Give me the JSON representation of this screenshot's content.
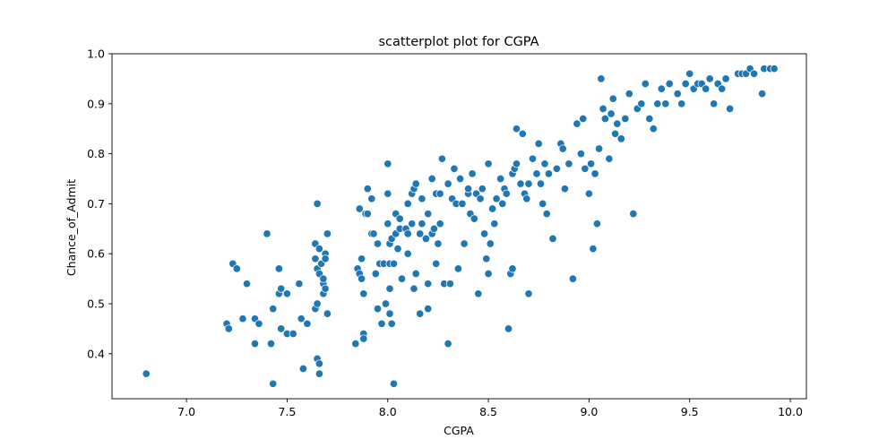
{
  "chart_data": {
    "type": "scatter",
    "title": "scatterplot plot for CGPA",
    "xlabel": "CGPA",
    "ylabel": "Chance_of_Admit",
    "xlim": [
      6.63,
      10.08
    ],
    "ylim": [
      0.31,
      1.0
    ],
    "xticks": [
      "7.0",
      "7.5",
      "8.0",
      "8.5",
      "9.0",
      "9.5",
      "10.0"
    ],
    "yticks": [
      "0.4",
      "0.5",
      "0.6",
      "0.7",
      "0.8",
      "0.9",
      "1.0"
    ],
    "grid": false,
    "color": "#1f77b4",
    "series": [
      {
        "points": [
          [
            6.8,
            0.36
          ],
          [
            7.2,
            0.46
          ],
          [
            7.21,
            0.45
          ],
          [
            7.23,
            0.58
          ],
          [
            7.25,
            0.57
          ],
          [
            7.28,
            0.47
          ],
          [
            7.3,
            0.54
          ],
          [
            7.34,
            0.47
          ],
          [
            7.34,
            0.42
          ],
          [
            7.36,
            0.46
          ],
          [
            7.4,
            0.64
          ],
          [
            7.42,
            0.42
          ],
          [
            7.43,
            0.34
          ],
          [
            7.43,
            0.49
          ],
          [
            7.46,
            0.52
          ],
          [
            7.46,
            0.57
          ],
          [
            7.47,
            0.53
          ],
          [
            7.47,
            0.45
          ],
          [
            7.5,
            0.52
          ],
          [
            7.5,
            0.44
          ],
          [
            7.53,
            0.44
          ],
          [
            7.56,
            0.54
          ],
          [
            7.57,
            0.47
          ],
          [
            7.58,
            0.37
          ],
          [
            7.6,
            0.46
          ],
          [
            7.64,
            0.49
          ],
          [
            7.64,
            0.62
          ],
          [
            7.64,
            0.59
          ],
          [
            7.65,
            0.5
          ],
          [
            7.65,
            0.7
          ],
          [
            7.65,
            0.39
          ],
          [
            7.65,
            0.57
          ],
          [
            7.66,
            0.38
          ],
          [
            7.66,
            0.61
          ],
          [
            7.66,
            0.36
          ],
          [
            7.66,
            0.56
          ],
          [
            7.67,
            0.58
          ],
          [
            7.68,
            0.54
          ],
          [
            7.68,
            0.55
          ],
          [
            7.68,
            0.52
          ],
          [
            7.69,
            0.6
          ],
          [
            7.69,
            0.59
          ],
          [
            7.69,
            0.53
          ],
          [
            7.7,
            0.48
          ],
          [
            7.7,
            0.64
          ],
          [
            7.84,
            0.42
          ],
          [
            7.85,
            0.57
          ],
          [
            7.86,
            0.69
          ],
          [
            7.86,
            0.56
          ],
          [
            7.87,
            0.59
          ],
          [
            7.87,
            0.55
          ],
          [
            7.88,
            0.44
          ],
          [
            7.88,
            0.43
          ],
          [
            7.88,
            0.52
          ],
          [
            7.89,
            0.68
          ],
          [
            7.9,
            0.73
          ],
          [
            7.9,
            0.68
          ],
          [
            7.92,
            0.71
          ],
          [
            7.92,
            0.64
          ],
          [
            7.93,
            0.64
          ],
          [
            7.94,
            0.56
          ],
          [
            7.95,
            0.49
          ],
          [
            7.95,
            0.62
          ],
          [
            7.96,
            0.58
          ],
          [
            7.97,
            0.46
          ],
          [
            7.98,
            0.58
          ],
          [
            7.99,
            0.5
          ],
          [
            8.0,
            0.72
          ],
          [
            8.0,
            0.78
          ],
          [
            8.0,
            0.66
          ],
          [
            8.01,
            0.58
          ],
          [
            8.01,
            0.48
          ],
          [
            8.01,
            0.62
          ],
          [
            8.01,
            0.53
          ],
          [
            8.02,
            0.46
          ],
          [
            8.02,
            0.63
          ],
          [
            8.03,
            0.34
          ],
          [
            8.03,
            0.58
          ],
          [
            8.04,
            0.64
          ],
          [
            8.04,
            0.68
          ],
          [
            8.05,
            0.61
          ],
          [
            8.06,
            0.67
          ],
          [
            8.06,
            0.65
          ],
          [
            8.07,
            0.55
          ],
          [
            8.09,
            0.65
          ],
          [
            8.1,
            0.6
          ],
          [
            8.1,
            0.64
          ],
          [
            8.1,
            0.7
          ],
          [
            8.12,
            0.66
          ],
          [
            8.12,
            0.72
          ],
          [
            8.13,
            0.73
          ],
          [
            8.13,
            0.53
          ],
          [
            8.14,
            0.74
          ],
          [
            8.14,
            0.56
          ],
          [
            8.16,
            0.48
          ],
          [
            8.16,
            0.64
          ],
          [
            8.17,
            0.71
          ],
          [
            8.17,
            0.66
          ],
          [
            8.19,
            0.63
          ],
          [
            8.2,
            0.68
          ],
          [
            8.2,
            0.54
          ],
          [
            8.2,
            0.49
          ],
          [
            8.22,
            0.75
          ],
          [
            8.22,
            0.64
          ],
          [
            8.23,
            0.65
          ],
          [
            8.24,
            0.58
          ],
          [
            8.24,
            0.72
          ],
          [
            8.25,
            0.62
          ],
          [
            8.26,
            0.72
          ],
          [
            8.26,
            0.66
          ],
          [
            8.27,
            0.79
          ],
          [
            8.28,
            0.54
          ],
          [
            8.3,
            0.74
          ],
          [
            8.3,
            0.42
          ],
          [
            8.31,
            0.54
          ],
          [
            8.32,
            0.71
          ],
          [
            8.33,
            0.77
          ],
          [
            8.34,
            0.7
          ],
          [
            8.35,
            0.57
          ],
          [
            8.36,
            0.75
          ],
          [
            8.37,
            0.7
          ],
          [
            8.38,
            0.62
          ],
          [
            8.4,
            0.72
          ],
          [
            8.4,
            0.73
          ],
          [
            8.41,
            0.68
          ],
          [
            8.42,
            0.76
          ],
          [
            8.43,
            0.67
          ],
          [
            8.44,
            0.72
          ],
          [
            8.45,
            0.52
          ],
          [
            8.46,
            0.71
          ],
          [
            8.47,
            0.73
          ],
          [
            8.48,
            0.64
          ],
          [
            8.49,
            0.59
          ],
          [
            8.5,
            0.56
          ],
          [
            8.5,
            0.78
          ],
          [
            8.51,
            0.62
          ],
          [
            8.52,
            0.69
          ],
          [
            8.53,
            0.66
          ],
          [
            8.54,
            0.71
          ],
          [
            8.56,
            0.75
          ],
          [
            8.57,
            0.7
          ],
          [
            8.58,
            0.73
          ],
          [
            8.59,
            0.72
          ],
          [
            8.6,
            0.45
          ],
          [
            8.61,
            0.56
          ],
          [
            8.62,
            0.57
          ],
          [
            8.62,
            0.76
          ],
          [
            8.63,
            0.77
          ],
          [
            8.64,
            0.78
          ],
          [
            8.64,
            0.85
          ],
          [
            8.66,
            0.74
          ],
          [
            8.67,
            0.84
          ],
          [
            8.68,
            0.72
          ],
          [
            8.69,
            0.71
          ],
          [
            8.7,
            0.52
          ],
          [
            8.7,
            0.74
          ],
          [
            8.72,
            0.79
          ],
          [
            8.74,
            0.76
          ],
          [
            8.75,
            0.82
          ],
          [
            8.76,
            0.74
          ],
          [
            8.77,
            0.7
          ],
          [
            8.78,
            0.78
          ],
          [
            8.79,
            0.68
          ],
          [
            8.8,
            0.76
          ],
          [
            8.82,
            0.63
          ],
          [
            8.84,
            0.77
          ],
          [
            8.86,
            0.82
          ],
          [
            8.87,
            0.81
          ],
          [
            8.88,
            0.73
          ],
          [
            8.9,
            0.78
          ],
          [
            8.92,
            0.55
          ],
          [
            8.94,
            0.86
          ],
          [
            8.96,
            0.8
          ],
          [
            8.97,
            0.87
          ],
          [
            8.98,
            0.77
          ],
          [
            9.0,
            0.72
          ],
          [
            9.01,
            0.78
          ],
          [
            9.02,
            0.61
          ],
          [
            9.03,
            0.76
          ],
          [
            9.04,
            0.66
          ],
          [
            9.05,
            0.81
          ],
          [
            9.06,
            0.95
          ],
          [
            9.07,
            0.89
          ],
          [
            9.08,
            0.87
          ],
          [
            9.1,
            0.79
          ],
          [
            9.11,
            0.88
          ],
          [
            9.12,
            0.91
          ],
          [
            9.13,
            0.84
          ],
          [
            9.14,
            0.86
          ],
          [
            9.16,
            0.83
          ],
          [
            9.18,
            0.87
          ],
          [
            9.2,
            0.92
          ],
          [
            9.22,
            0.68
          ],
          [
            9.24,
            0.89
          ],
          [
            9.26,
            0.9
          ],
          [
            9.28,
            0.94
          ],
          [
            9.3,
            0.87
          ],
          [
            9.32,
            0.85
          ],
          [
            9.34,
            0.9
          ],
          [
            9.36,
            0.93
          ],
          [
            9.38,
            0.9
          ],
          [
            9.4,
            0.94
          ],
          [
            9.44,
            0.92
          ],
          [
            9.46,
            0.9
          ],
          [
            9.48,
            0.94
          ],
          [
            9.5,
            0.96
          ],
          [
            9.52,
            0.93
          ],
          [
            9.54,
            0.94
          ],
          [
            9.56,
            0.94
          ],
          [
            9.58,
            0.93
          ],
          [
            9.6,
            0.95
          ],
          [
            9.62,
            0.9
          ],
          [
            9.64,
            0.94
          ],
          [
            9.66,
            0.93
          ],
          [
            9.68,
            0.95
          ],
          [
            9.7,
            0.89
          ],
          [
            9.74,
            0.96
          ],
          [
            9.76,
            0.96
          ],
          [
            9.78,
            0.96
          ],
          [
            9.8,
            0.97
          ],
          [
            9.82,
            0.96
          ],
          [
            9.86,
            0.92
          ],
          [
            9.87,
            0.97
          ],
          [
            9.9,
            0.97
          ],
          [
            9.92,
            0.97
          ]
        ]
      }
    ]
  }
}
